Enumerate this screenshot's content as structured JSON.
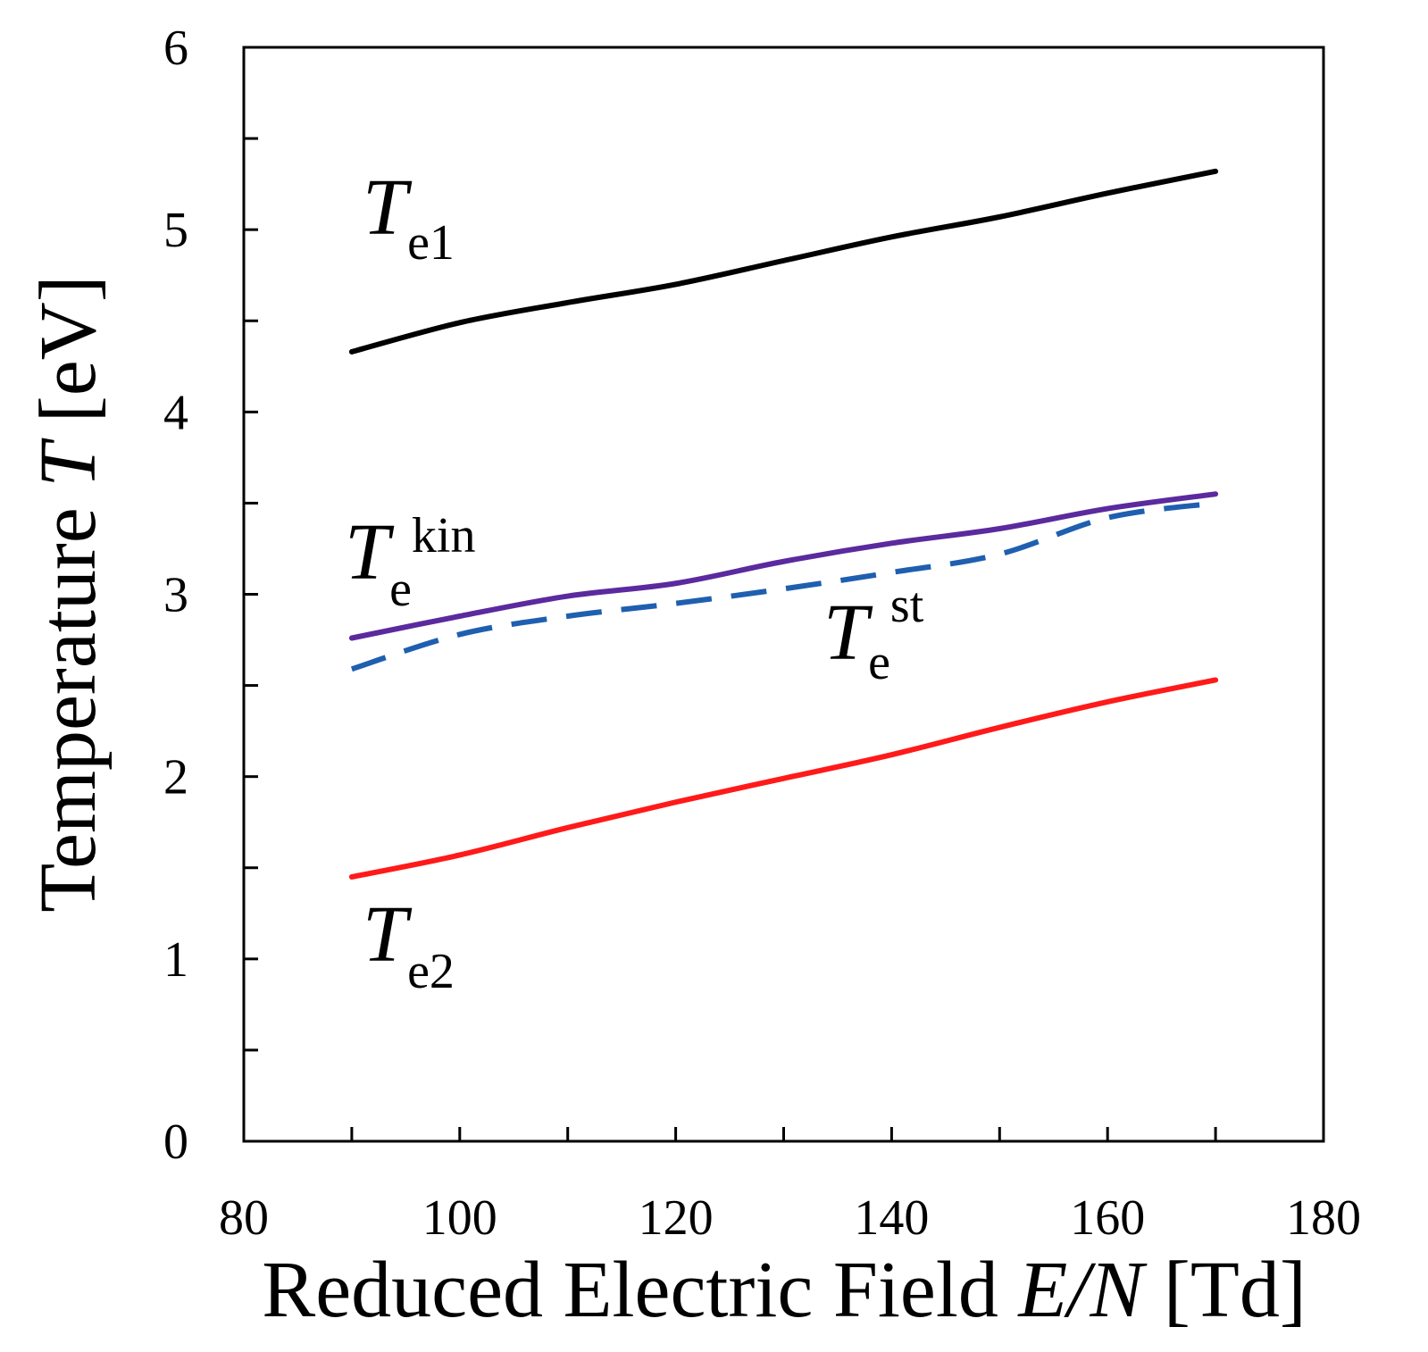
{
  "chart_data": {
    "type": "line",
    "title": "",
    "xlabel": {
      "prefix": "Reduced Electric Field ",
      "var": "E/N",
      "unit": " [Td]"
    },
    "ylabel": {
      "prefix": "Temperature ",
      "var": "T",
      "unit": " [eV]"
    },
    "xlim": [
      80,
      180
    ],
    "ylim": [
      0,
      6
    ],
    "xticks": [
      80,
      100,
      120,
      140,
      160,
      180
    ],
    "yticks": [
      0,
      1,
      2,
      3,
      4,
      5,
      6
    ],
    "xtick_labels": [
      "80",
      "100",
      "120",
      "140",
      "160",
      "180"
    ],
    "ytick_labels": [
      "0",
      "1",
      "2",
      "3",
      "4",
      "5",
      "6"
    ],
    "grid": false,
    "series": [
      {
        "id": "te1",
        "symbol": "T",
        "subscript": "e1",
        "superscript": "",
        "color": "#000000",
        "dash": "solid",
        "x": [
          90,
          100,
          110,
          120,
          130,
          140,
          150,
          160,
          170
        ],
        "y": [
          4.33,
          4.49,
          4.6,
          4.7,
          4.83,
          4.96,
          5.07,
          5.2,
          5.32
        ]
      },
      {
        "id": "te_kin",
        "symbol": "T",
        "subscript": "e",
        "superscript": "kin",
        "color": "#5b2a9e",
        "dash": "solid",
        "x": [
          90,
          100,
          110,
          120,
          130,
          140,
          150,
          160,
          170
        ],
        "y": [
          2.76,
          2.88,
          2.99,
          3.06,
          3.18,
          3.28,
          3.36,
          3.47,
          3.55
        ]
      },
      {
        "id": "te_st",
        "symbol": "T",
        "subscript": "e",
        "superscript": "st",
        "color": "#1f5fb0",
        "dash": "dashed",
        "x": [
          90,
          100,
          110,
          120,
          130,
          140,
          150,
          160,
          170
        ],
        "y": [
          2.59,
          2.78,
          2.88,
          2.95,
          3.03,
          3.12,
          3.22,
          3.42,
          3.5
        ]
      },
      {
        "id": "te2",
        "symbol": "T",
        "subscript": "e2",
        "superscript": "",
        "color": "#ff1a1a",
        "dash": "solid",
        "x": [
          90,
          100,
          110,
          120,
          130,
          140,
          150,
          160,
          170
        ],
        "y": [
          1.45,
          1.57,
          1.72,
          1.86,
          1.99,
          2.12,
          2.27,
          2.41,
          2.53
        ]
      }
    ]
  }
}
